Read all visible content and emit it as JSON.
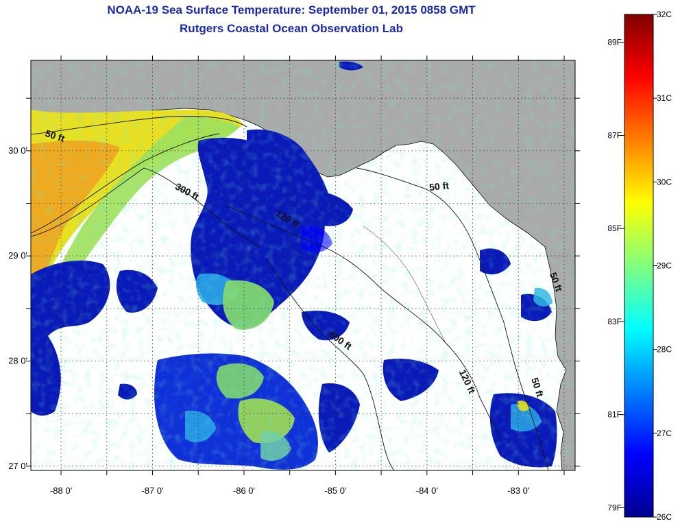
{
  "title": "NOAA-19 Sea Surface Temperature:  September 01, 2015 0858 GMT",
  "subtitle": "Rutgers Coastal Ocean Observation Lab",
  "colors": {
    "land": "#aaaaaa",
    "water_nodata": "#ffffff",
    "title": "#1a2aa8"
  },
  "map": {
    "lon_range": [
      -88.33,
      -82.38
    ],
    "lat_range": [
      26.96,
      30.86
    ],
    "lon_ticks": [
      {
        "value": -88,
        "label": "-88 0'"
      },
      {
        "value": -87,
        "label": "-87 0'"
      },
      {
        "value": -86,
        "label": "-86 0'"
      },
      {
        "value": -85,
        "label": "-85 0'"
      },
      {
        "value": -84,
        "label": "-84 0'"
      },
      {
        "value": -83,
        "label": "-83 0'"
      }
    ],
    "lat_ticks": [
      {
        "value": 30,
        "label": "30 0'"
      },
      {
        "value": 29,
        "label": "29 0'"
      },
      {
        "value": 28,
        "label": "28 0'"
      },
      {
        "value": 27,
        "label": "27 0'"
      }
    ],
    "contour_labels": [
      {
        "text": "50 ft",
        "lon": -88.18,
        "lat": 30.14,
        "angle": 18
      },
      {
        "text": "300 ft",
        "lon": -86.76,
        "lat": 29.64,
        "angle": 28
      },
      {
        "text": "120 ft",
        "lon": -85.66,
        "lat": 29.39,
        "angle": 32
      },
      {
        "text": "50 ft",
        "lon": -83.97,
        "lat": 29.62,
        "angle": -6
      },
      {
        "text": "600 ft",
        "lon": -85.08,
        "lat": 28.24,
        "angle": 35
      },
      {
        "text": "120 ft",
        "lon": -83.65,
        "lat": 27.9,
        "angle": 65
      },
      {
        "text": "50 ft",
        "lon": -82.86,
        "lat": 27.83,
        "angle": 72
      },
      {
        "text": "50 ft",
        "lon": -82.66,
        "lat": 28.83,
        "angle": 70
      }
    ]
  },
  "colorbar": {
    "c_labels": [
      "32C",
      "31C",
      "30C",
      "29C",
      "28C",
      "27C",
      "26C"
    ],
    "f_labels": [
      "89F",
      "87F",
      "85F",
      "83F",
      "81F",
      "79F"
    ],
    "c_range": [
      26,
      32
    ]
  }
}
